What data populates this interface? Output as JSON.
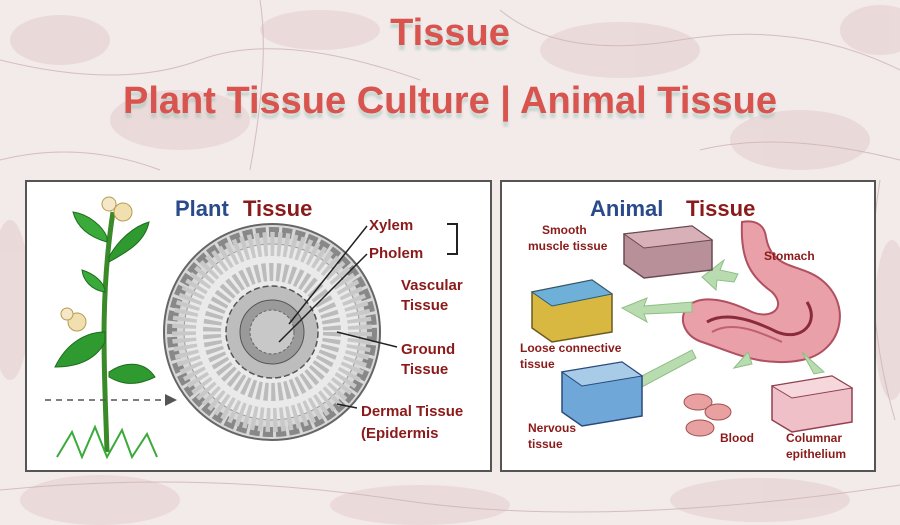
{
  "page": {
    "title": "Tissue",
    "subtitle": "Plant Tissue Culture | Animal Tissue"
  },
  "plant_panel": {
    "heading_part1": "Plant",
    "heading_part2": "Tissue",
    "labels": {
      "xylem": "Xylem",
      "pholem": "Pholem",
      "vascular1": "Vascular",
      "vascular2": "Tissue",
      "ground1": "Ground",
      "ground2": "Tissue",
      "dermal1": "Dermal Tissue",
      "dermal2": "(Epidermis"
    }
  },
  "animal_panel": {
    "heading_part1": "Animal",
    "heading_part2": "Tissue",
    "labels": {
      "smooth1": "Smooth",
      "smooth2": "muscle tissue",
      "stomach": "Stomach",
      "loose1": "Loose connective",
      "loose2": "tissue",
      "nervous1": "Nervous",
      "nervous2": "tissue",
      "blood": "Blood",
      "columnar1": "Columnar",
      "columnar2": "epithelium"
    }
  },
  "colors": {
    "title": "#d9534f",
    "heading_blue": "#2a4a8a",
    "heading_red": "#8b1a1a",
    "label_red": "#8b1a1a"
  }
}
